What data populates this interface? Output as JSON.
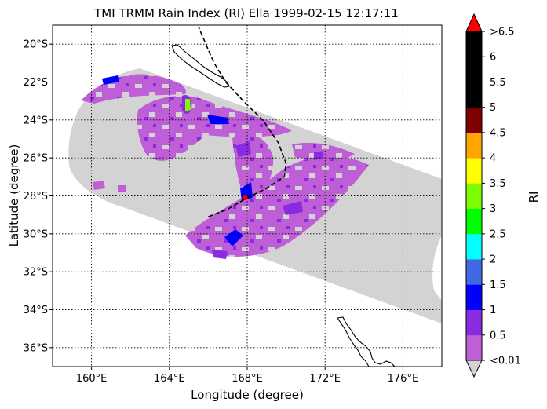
{
  "chart_data": {
    "type": "heatmap",
    "title": "TMI TRMM Rain Index (RI) Ella 1999-02-15 12:17:11",
    "xlabel": "Longitude (degree)",
    "ylabel": "Latitude (degree)",
    "xlim": [
      158,
      178
    ],
    "ylim": [
      -37,
      -19
    ],
    "grid": true,
    "x_ticks": [
      160,
      164,
      168,
      172,
      176
    ],
    "x_tick_labels": [
      "160°E",
      "164°E",
      "168°E",
      "172°E",
      "176°E"
    ],
    "y_ticks": [
      -20,
      -22,
      -24,
      -26,
      -28,
      -30,
      -32,
      -34,
      -36
    ],
    "y_tick_labels": [
      "20°S",
      "22°S",
      "24°S",
      "26°S",
      "28°S",
      "30°S",
      "32°S",
      "34°S",
      "36°S"
    ],
    "swath_color": "#d3d3d3",
    "colorbar": {
      "label": "RI",
      "under_color": "#d3d3d3",
      "over_color": "#ff0000",
      "bins": [
        {
          "from": 0.01,
          "to": 0.5,
          "color": "#bf5fd7"
        },
        {
          "from": 0.5,
          "to": 1.0,
          "color": "#8a2be2"
        },
        {
          "from": 1.0,
          "to": 1.5,
          "color": "#0000ff"
        },
        {
          "from": 1.5,
          "to": 2.0,
          "color": "#4169e1"
        },
        {
          "from": 2.0,
          "to": 2.5,
          "color": "#00ffff"
        },
        {
          "from": 2.5,
          "to": 3.0,
          "color": "#00ff00"
        },
        {
          "from": 3.0,
          "to": 3.5,
          "color": "#7cfc00"
        },
        {
          "from": 3.5,
          "to": 4.0,
          "color": "#ffff00"
        },
        {
          "from": 4.0,
          "to": 4.5,
          "color": "#ffa500"
        },
        {
          "from": 4.5,
          "to": 5.0,
          "color": "#800000"
        },
        {
          "from": 5.0,
          "to": 5.5,
          "color": "#000000"
        },
        {
          "from": 5.5,
          "to": 6.0,
          "color": "#000000"
        },
        {
          "from": 6.0,
          "to": 6.5,
          "color": "#000000"
        }
      ],
      "tick_labels": [
        "<0.01",
        "0.5",
        "1",
        "1.5",
        "2",
        "2.5",
        "3",
        "3.5",
        "4",
        "4.5",
        "5",
        "5.5",
        "6",
        ">6.5"
      ]
    },
    "storm_center": {
      "lon": 167.9,
      "lat": -28.1,
      "color": "#ff0000"
    },
    "storm_track": [
      [
        166.0,
        -29.1
      ],
      [
        167.0,
        -28.7
      ],
      [
        168.0,
        -28.1
      ],
      [
        169.0,
        -27.6
      ],
      [
        169.9,
        -27.0
      ],
      [
        170.0,
        -26.3
      ],
      [
        169.6,
        -25.2
      ],
      [
        168.8,
        -24.0
      ],
      [
        167.8,
        -23.0
      ],
      [
        166.9,
        -22.0
      ],
      [
        166.3,
        -21.0
      ],
      [
        166.0,
        -20.3
      ],
      [
        165.5,
        -19.1
      ]
    ]
  }
}
